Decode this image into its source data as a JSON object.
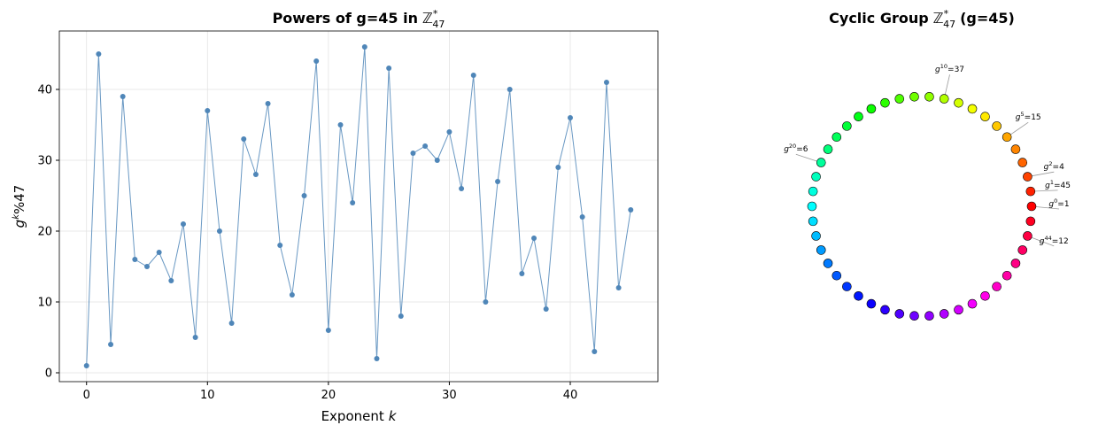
{
  "chart_data": [
    {
      "type": "line",
      "title": "Powers of g=45 in",
      "title_symbol": "ℤ",
      "title_sup": "*",
      "title_sub": "47",
      "xlabel": "Exponent",
      "xlabel_var": "k",
      "ylabel": "g",
      "ylabel_sup": "k",
      "ylabel_rest": "%47",
      "x": [
        0,
        1,
        2,
        3,
        4,
        5,
        6,
        7,
        8,
        9,
        10,
        11,
        12,
        13,
        14,
        15,
        16,
        17,
        18,
        19,
        20,
        21,
        22,
        23,
        24,
        25,
        26,
        27,
        28,
        29,
        30,
        31,
        32,
        33,
        34,
        35,
        36,
        37,
        38,
        39,
        40,
        41,
        42,
        43,
        44,
        45
      ],
      "series": [
        {
          "color": "#4f86b8",
          "values": [
            1,
            45,
            4,
            39,
            16,
            15,
            17,
            13,
            21,
            5,
            37,
            20,
            7,
            33,
            28,
            38,
            18,
            11,
            25,
            44,
            6,
            35,
            24,
            46,
            2,
            43,
            8,
            31,
            32,
            30,
            34,
            26,
            42,
            10,
            27,
            40,
            14,
            19,
            9,
            29,
            36,
            22,
            3,
            41,
            12,
            23
          ]
        }
      ],
      "xlim": [
        -2.25,
        47.25
      ],
      "xticks": [
        0,
        10,
        20,
        30,
        40
      ],
      "ylim": [
        -1.25,
        48.25
      ],
      "yticks": [
        0,
        10,
        20,
        30,
        40
      ],
      "grid": true
    },
    {
      "type": "cycle",
      "title": "Cyclic Group",
      "title_symbol": "ℤ",
      "title_sup": "*",
      "title_sub": "47",
      "title_tail": "(g=45)",
      "colormap": "hsv",
      "values": [
        1,
        45,
        4,
        39,
        16,
        15,
        17,
        13,
        21,
        5,
        37,
        20,
        7,
        33,
        28,
        38,
        18,
        11,
        25,
        44,
        6,
        35,
        24,
        46,
        2,
        43,
        8,
        31,
        32,
        30,
        34,
        26,
        42,
        10,
        27,
        40,
        14,
        19,
        9,
        29,
        36,
        22,
        3,
        41,
        12,
        23
      ],
      "annotations": [
        {
          "base": "g",
          "power": 0,
          "result": "=1"
        },
        {
          "base": "g",
          "power": 1,
          "result": "=45"
        },
        {
          "base": "g",
          "power": 2,
          "result": "=4"
        },
        {
          "base": "g",
          "power": 5,
          "result": "=15"
        },
        {
          "base": "g",
          "power": 10,
          "result": "=37"
        },
        {
          "base": "g",
          "power": 20,
          "result": "=6"
        },
        {
          "base": "g",
          "power": 44,
          "result": "=12"
        }
      ]
    }
  ]
}
